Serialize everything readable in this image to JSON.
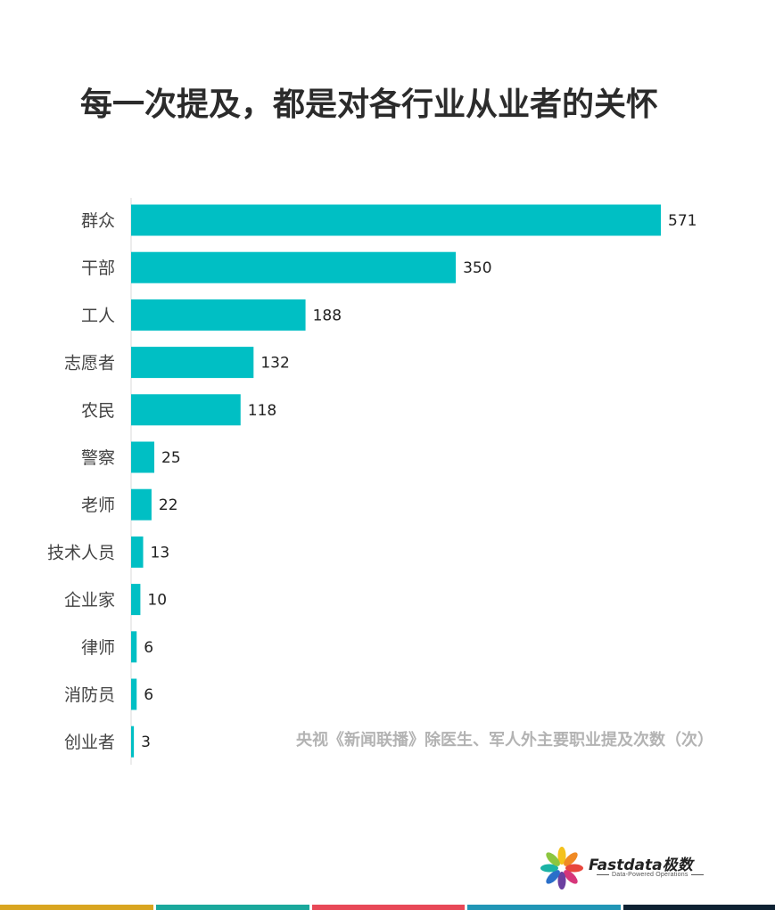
{
  "title": "每一次提及，都是对各行业从业者的关怀",
  "chart_data": {
    "type": "bar",
    "orientation": "horizontal",
    "categories": [
      "群众",
      "干部",
      "工人",
      "志愿者",
      "农民",
      "警察",
      "老师",
      "技术人员",
      "企业家",
      "律师",
      "消防员",
      "创业者"
    ],
    "values": [
      571,
      350,
      188,
      132,
      118,
      25,
      22,
      13,
      10,
      6,
      6,
      3
    ],
    "annotation": "央视《新闻联播》除医生、军人外主要职业提及次数（次）",
    "bar_color": "#00bfc4",
    "xlim": [
      0,
      571
    ],
    "grid": false,
    "data_labels": true
  },
  "brand": {
    "name": "Fastdata极数",
    "tagline": "Data-Powered Operations",
    "icon": "flower-logo-icon"
  },
  "footer_colors": [
    "#d9a520",
    "#1aa89c",
    "#e84857",
    "#2196b6",
    "#0e2233"
  ]
}
